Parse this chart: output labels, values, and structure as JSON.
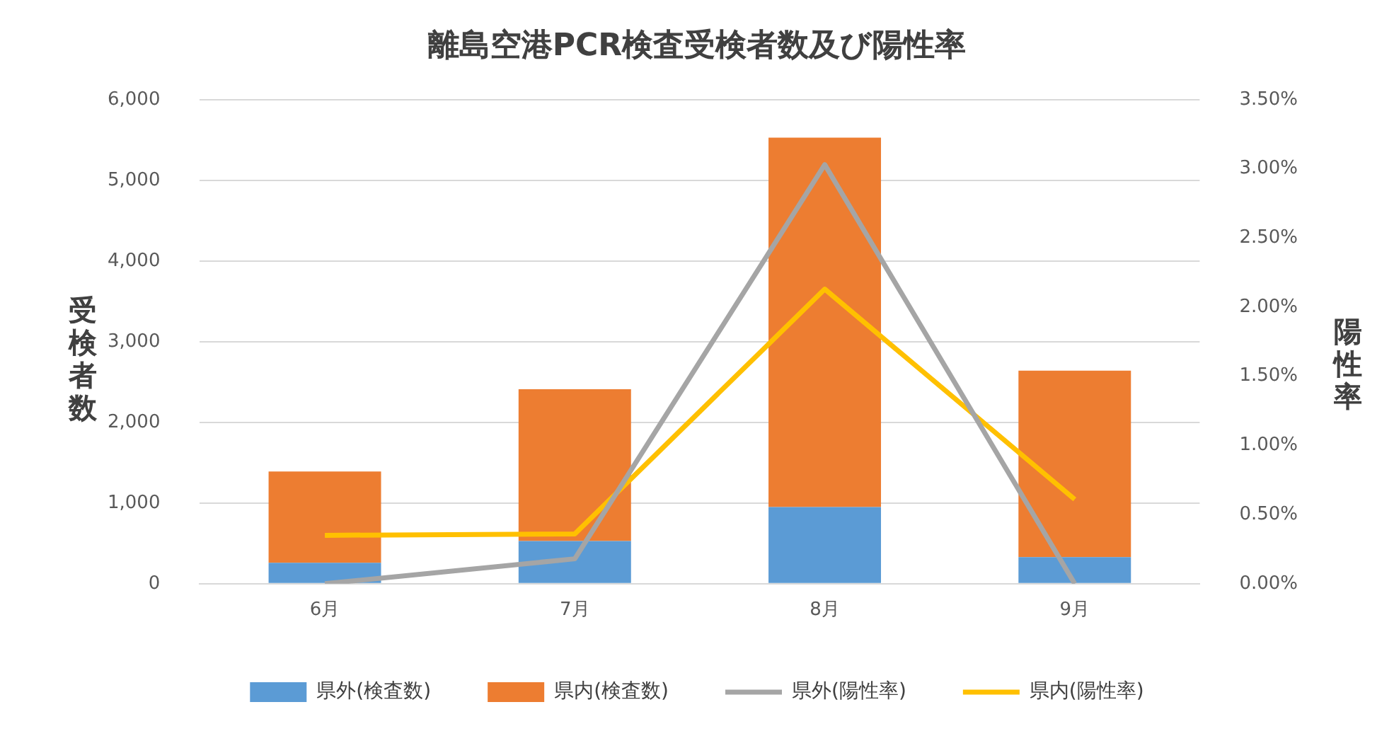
{
  "chart_data": {
    "type": "bar",
    "title": "離島空港PCR検査受検者数及び陽性率",
    "ylabel": "受検者数",
    "y2label": "陽性率",
    "categories": [
      "6月",
      "7月",
      "8月",
      "9月"
    ],
    "stacked": true,
    "series": [
      {
        "name": "県外(検査数)",
        "color": "#5b9bd5",
        "values": [
          260,
          530,
          950,
          330
        ]
      },
      {
        "name": "県内(検査数)",
        "color": "#ed7d31",
        "values": [
          1130,
          1880,
          4580,
          2310
        ]
      },
      {
        "name": "県外(陽性率)",
        "type": "line",
        "axis": "y2",
        "color": "#a5a5a5",
        "values": [
          0.0,
          0.18,
          3.03,
          0.0
        ]
      },
      {
        "name": "県内(陽性率)",
        "type": "line",
        "axis": "y2",
        "color": "#ffc000",
        "values": [
          0.35,
          0.36,
          2.13,
          0.61
        ]
      }
    ],
    "ylim": [
      0,
      6000
    ],
    "yticks": [
      {
        "value": 0,
        "label": "0"
      },
      {
        "value": 1000,
        "label": "1,000"
      },
      {
        "value": 2000,
        "label": "2,000"
      },
      {
        "value": 3000,
        "label": "3,000"
      },
      {
        "value": 4000,
        "label": "4,000"
      },
      {
        "value": 5000,
        "label": "5,000"
      },
      {
        "value": 6000,
        "label": "6,000"
      }
    ],
    "y2lim": [
      0,
      3.5
    ],
    "y2ticks": [
      {
        "value": 0,
        "label": "0.00%"
      },
      {
        "value": 0.5,
        "label": "0.50%"
      },
      {
        "value": 1,
        "label": "1.00%"
      },
      {
        "value": 1.5,
        "label": "1.50%"
      },
      {
        "value": 2,
        "label": "2.00%"
      },
      {
        "value": 2.5,
        "label": "2.50%"
      },
      {
        "value": 3,
        "label": "3.00%"
      },
      {
        "value": 3.5,
        "label": "3.50%"
      }
    ],
    "grid": "y",
    "legend": "bottom",
    "marker": "none"
  }
}
